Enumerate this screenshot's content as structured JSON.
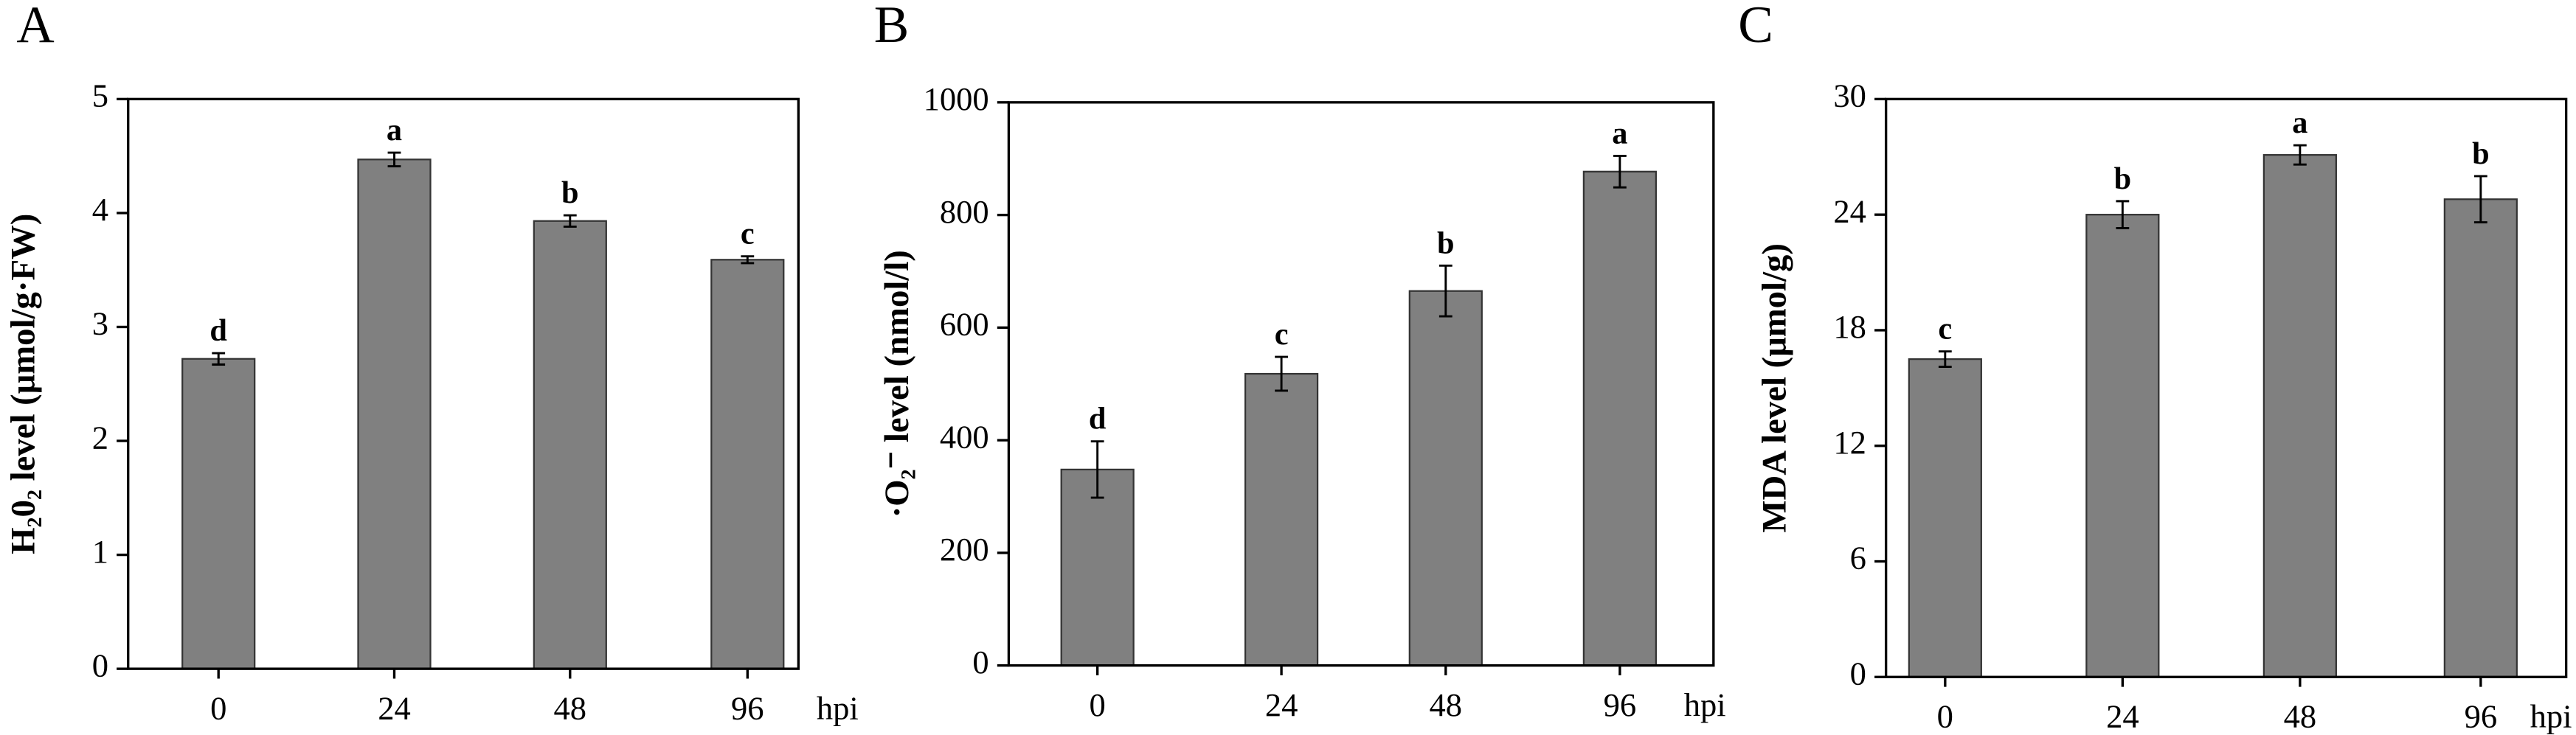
{
  "chart_data": [
    {
      "type": "bar",
      "panel": "A",
      "y_label": "H₂0₂ level (μmol/g·FW)",
      "x_unit": "hpi",
      "categories": [
        "0",
        "24",
        "48",
        "96"
      ],
      "values": [
        2.72,
        4.47,
        3.93,
        3.59
      ],
      "errors": [
        0.05,
        0.06,
        0.05,
        0.03
      ],
      "annotations": [
        "d",
        "a",
        "b",
        "c"
      ],
      "color": "#808080",
      "ylim": [
        0,
        5
      ],
      "yticks": [
        0,
        1,
        2,
        3,
        4,
        5
      ]
    },
    {
      "type": "bar",
      "panel": "B",
      "y_label": "·O₂⁻ level (nmol/l)",
      "x_unit": "hpi",
      "categories": [
        "0",
        "24",
        "48",
        "96"
      ],
      "values": [
        348,
        518,
        665,
        877
      ],
      "errors": [
        50,
        30,
        45,
        28
      ],
      "annotations": [
        "d",
        "c",
        "b",
        "a"
      ],
      "color": "#808080",
      "ylim": [
        0,
        1000
      ],
      "yticks": [
        0,
        200,
        400,
        600,
        800,
        1000
      ]
    },
    {
      "type": "bar",
      "panel": "C",
      "y_label": "MDA level (μmol/g)",
      "x_unit": "hpi",
      "categories": [
        "0",
        "24",
        "48",
        "96"
      ],
      "values": [
        16.5,
        24,
        27.1,
        24.8
      ],
      "errors": [
        0.4,
        0.7,
        0.5,
        1.2
      ],
      "annotations": [
        "c",
        "b",
        "a",
        "b"
      ],
      "color": "#808080",
      "ylim": [
        0,
        30
      ],
      "yticks": [
        0,
        6,
        12,
        18,
        24,
        30
      ]
    }
  ]
}
